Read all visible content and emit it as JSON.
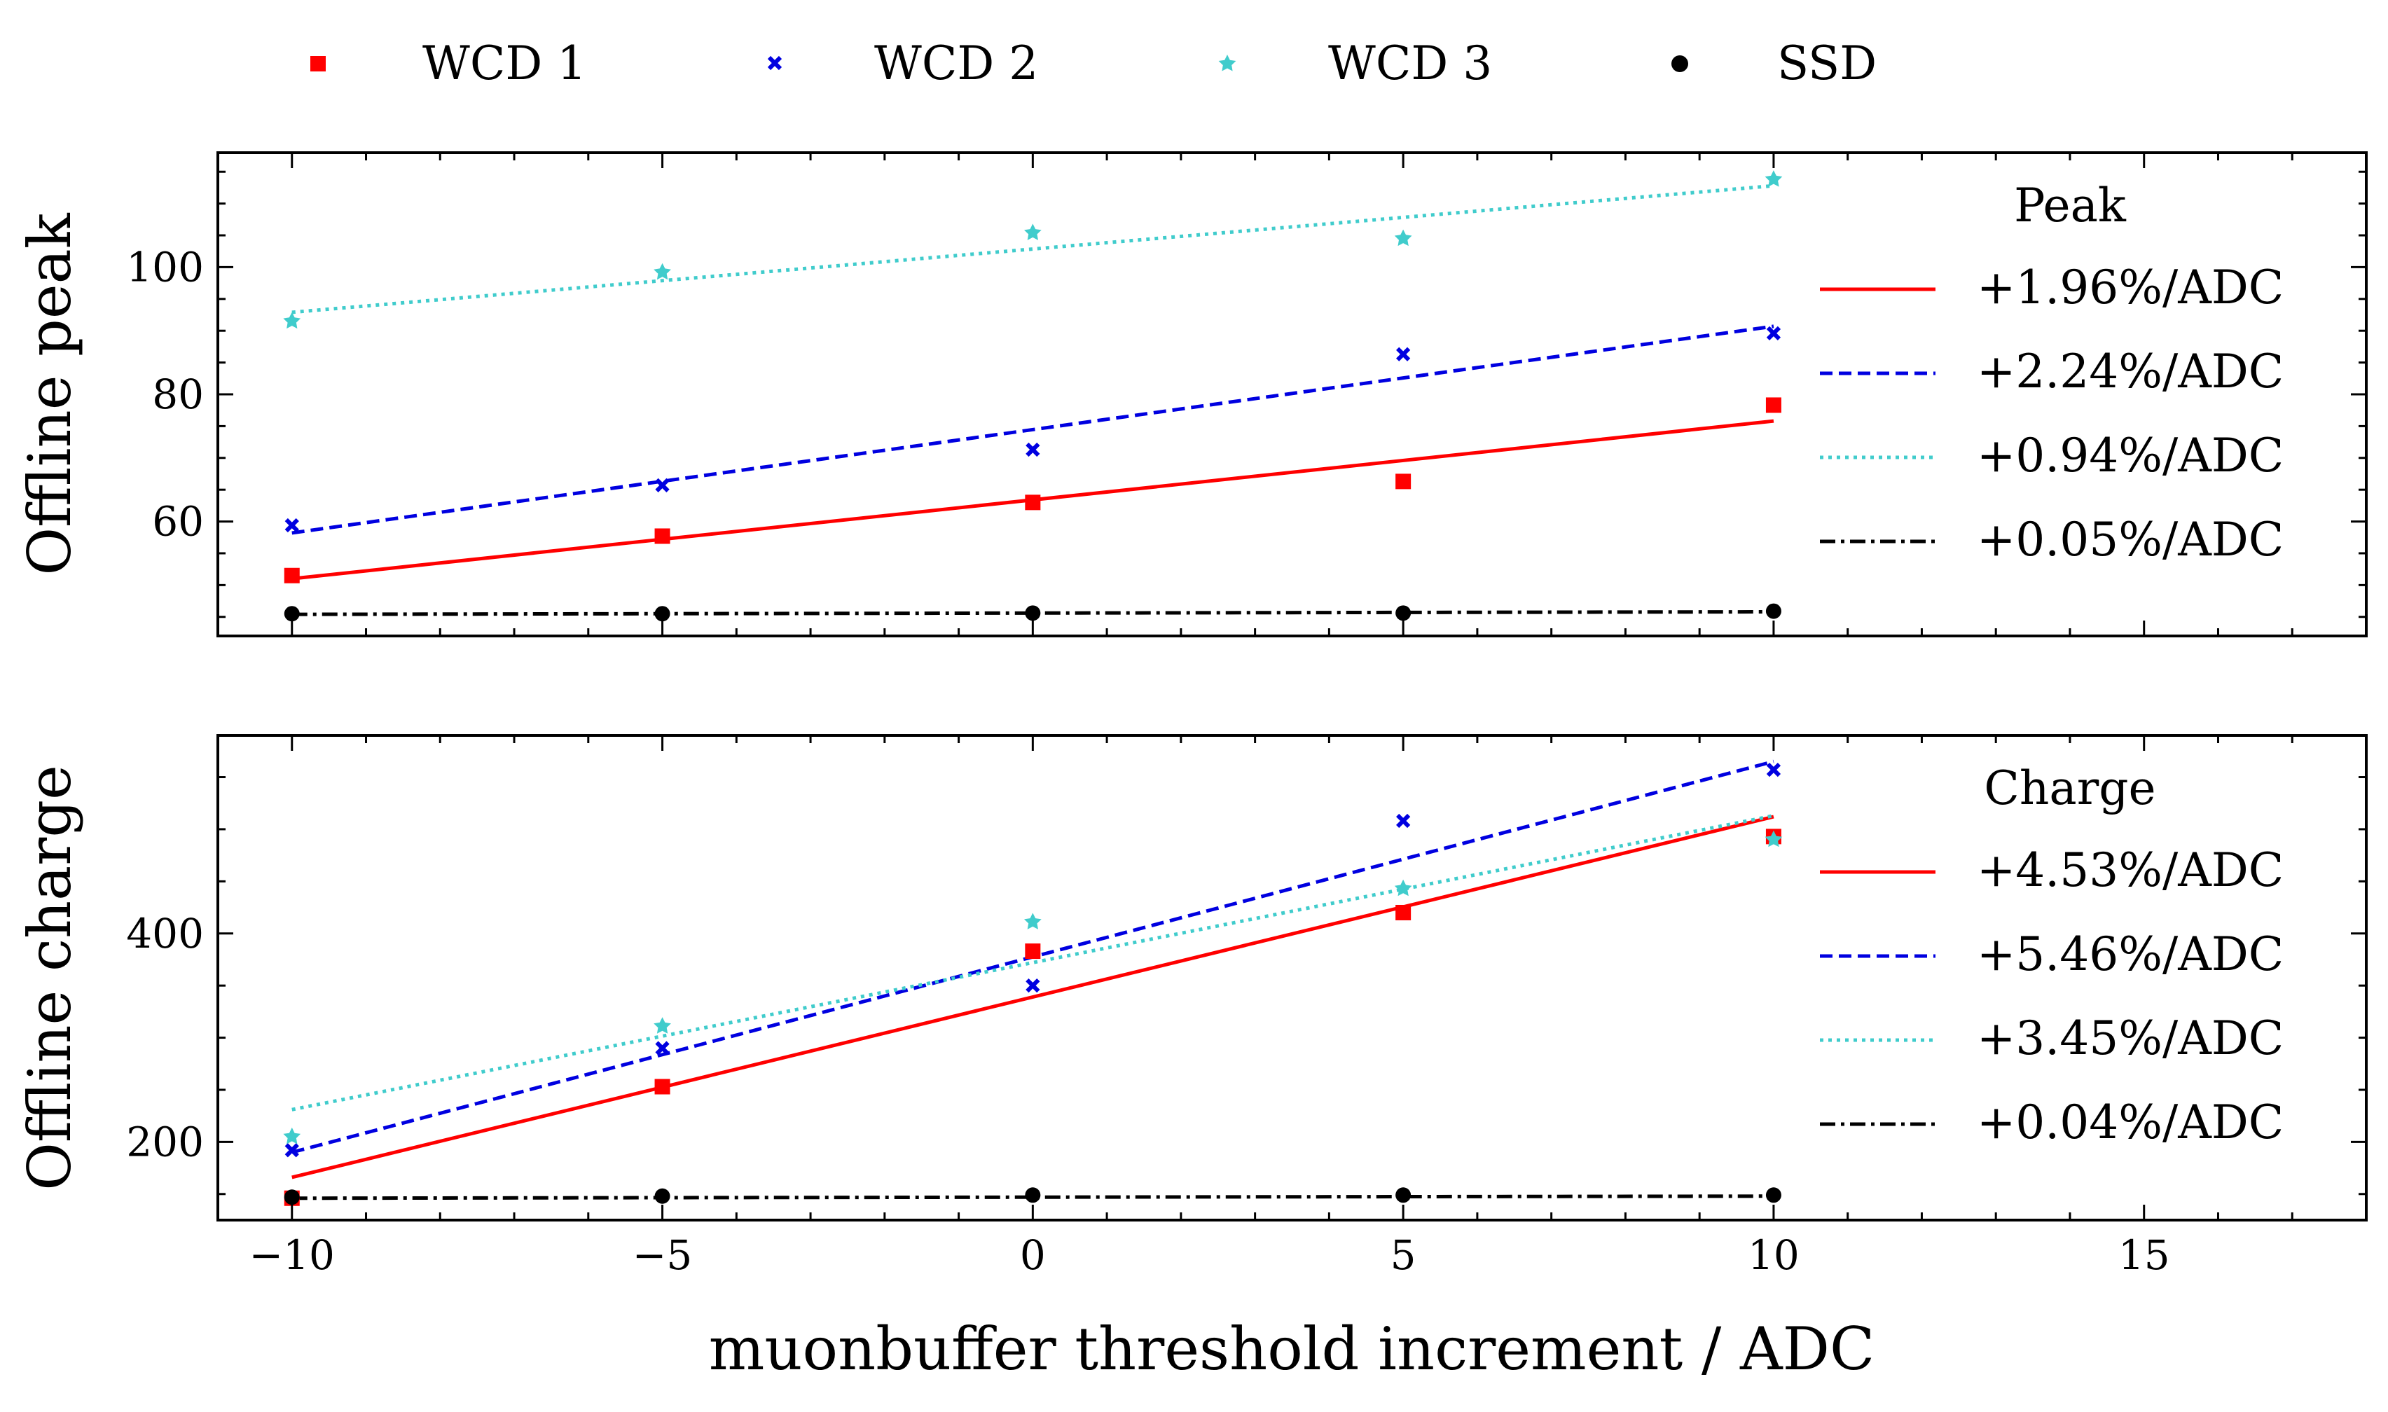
{
  "colors": {
    "WCD 1": "#ff0000",
    "WCD 2": "#0000e0",
    "WCD 3": "#40cccc",
    "SSD": "#000000"
  },
  "legend_top": [
    {
      "name": "WCD 1",
      "marker": "square",
      "color": "#ff0000"
    },
    {
      "name": "WCD 2",
      "marker": "cross",
      "color": "#0000e0"
    },
    {
      "name": "WCD 3",
      "marker": "star",
      "color": "#40cccc"
    },
    {
      "name": "SSD",
      "marker": "circle",
      "color": "#000000"
    }
  ],
  "xlabel": "muonbuffer threshold increment / ADC",
  "chart_data": [
    {
      "type": "scatter",
      "title": "",
      "ylabel": "Offline peak",
      "xlim": [
        -11,
        18
      ],
      "ylim": [
        42,
        118
      ],
      "xticks": [
        -10,
        -5,
        0,
        5,
        10,
        15
      ],
      "yticks": [
        60,
        80,
        100
      ],
      "legend_title": "Peak",
      "legend_placement": "right",
      "series": [
        {
          "name": "WCD 1",
          "color": "#ff0000",
          "marker": "square",
          "linestyle": "solid",
          "x": [
            -10,
            -5,
            0,
            5,
            10
          ],
          "y": [
            51.5,
            57.7,
            63.0,
            66.3,
            78.3
          ],
          "fit": {
            "x": [
              -10,
              10
            ],
            "y": [
              51.0,
              75.8
            ]
          },
          "fit_label": "+1.96%/ADC"
        },
        {
          "name": "WCD 2",
          "color": "#0000e0",
          "marker": "cross",
          "linestyle": "dashed",
          "x": [
            -10,
            -5,
            0,
            5,
            10
          ],
          "y": [
            59.4,
            65.7,
            71.3,
            86.3,
            89.6
          ],
          "fit": {
            "x": [
              -10,
              10
            ],
            "y": [
              58.2,
              90.7
            ]
          },
          "fit_label": "+2.24%/ADC"
        },
        {
          "name": "WCD 3",
          "color": "#40cccc",
          "marker": "star",
          "linestyle": "dotted",
          "x": [
            -10,
            -5,
            0,
            5,
            10
          ],
          "y": [
            91.5,
            99.2,
            105.4,
            104.5,
            113.8
          ],
          "fit": {
            "x": [
              -10,
              10
            ],
            "y": [
              92.9,
              112.8
            ]
          },
          "fit_label": "+0.94%/ADC"
        },
        {
          "name": "SSD",
          "color": "#000000",
          "marker": "circle",
          "linestyle": "dashdot",
          "x": [
            -10,
            -5,
            0,
            5,
            10
          ],
          "y": [
            45.5,
            45.5,
            45.6,
            45.6,
            45.9
          ],
          "fit": {
            "x": [
              -10,
              10
            ],
            "y": [
              45.4,
              45.8
            ]
          },
          "fit_label": "+0.05%/ADC"
        }
      ]
    },
    {
      "type": "scatter",
      "title": "",
      "ylabel": "Offline charge",
      "xlim": [
        -11,
        18
      ],
      "ylim": [
        125,
        590
      ],
      "xticks": [
        -10,
        -5,
        0,
        5,
        10,
        15
      ],
      "yticks": [
        200,
        400
      ],
      "legend_title": "Charge",
      "legend_placement": "right",
      "series": [
        {
          "name": "WCD 1",
          "color": "#ff0000",
          "marker": "square",
          "linestyle": "solid",
          "x": [
            -10,
            -5,
            0,
            5,
            10
          ],
          "y": [
            146,
            253,
            383,
            420,
            493
          ],
          "fit": {
            "x": [
              -10,
              10
            ],
            "y": [
              166,
              512
            ]
          },
          "fit_label": "+4.53%/ADC"
        },
        {
          "name": "WCD 2",
          "color": "#0000e0",
          "marker": "cross",
          "linestyle": "dashed",
          "x": [
            -10,
            -5,
            0,
            5,
            10
          ],
          "y": [
            192,
            290,
            350,
            508,
            557
          ],
          "fit": {
            "x": [
              -10,
              10
            ],
            "y": [
              190,
              565
            ]
          },
          "fit_label": "+5.46%/ADC"
        },
        {
          "name": "WCD 3",
          "color": "#40cccc",
          "marker": "star",
          "linestyle": "dotted",
          "x": [
            -10,
            -5,
            0,
            5,
            10
          ],
          "y": [
            205,
            311,
            411,
            443,
            490
          ],
          "fit": {
            "x": [
              -10,
              10
            ],
            "y": [
              231,
              513
            ]
          },
          "fit_label": "+3.45%/ADC"
        },
        {
          "name": "SSD",
          "color": "#000000",
          "marker": "circle",
          "linestyle": "dashdot",
          "x": [
            -10,
            -5,
            0,
            5,
            10
          ],
          "y": [
            147,
            148,
            149,
            149,
            149
          ],
          "fit": {
            "x": [
              -10,
              10
            ],
            "y": [
              146,
              148
            ]
          },
          "fit_label": "+0.04%/ADC"
        }
      ]
    }
  ]
}
